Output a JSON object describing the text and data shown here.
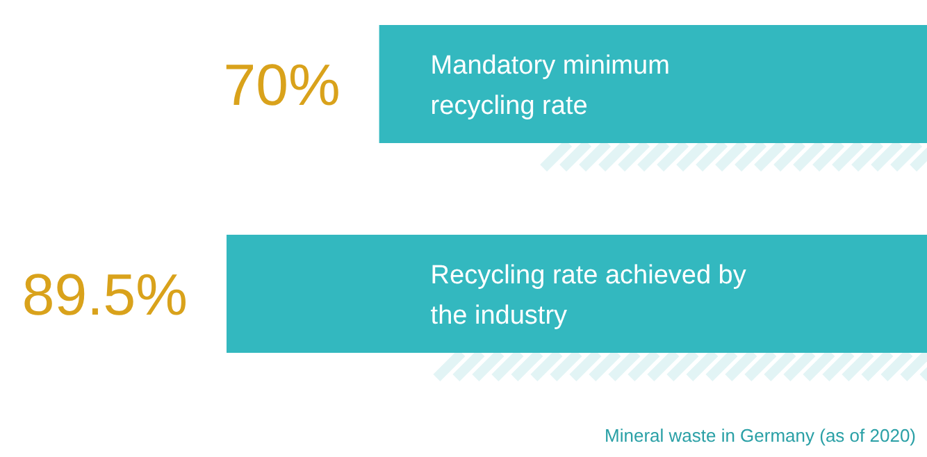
{
  "chart_data": {
    "type": "bar",
    "orientation": "horizontal",
    "categories": [
      "Mandatory minimum recycling rate",
      "Recycling rate achieved by the industry"
    ],
    "values": [
      70,
      89.5
    ],
    "value_labels": [
      "70%",
      "89.5%"
    ],
    "color": "#33b8bf",
    "annotations": [
      "Mineral waste in Germany (as of 2020)"
    ]
  }
}
